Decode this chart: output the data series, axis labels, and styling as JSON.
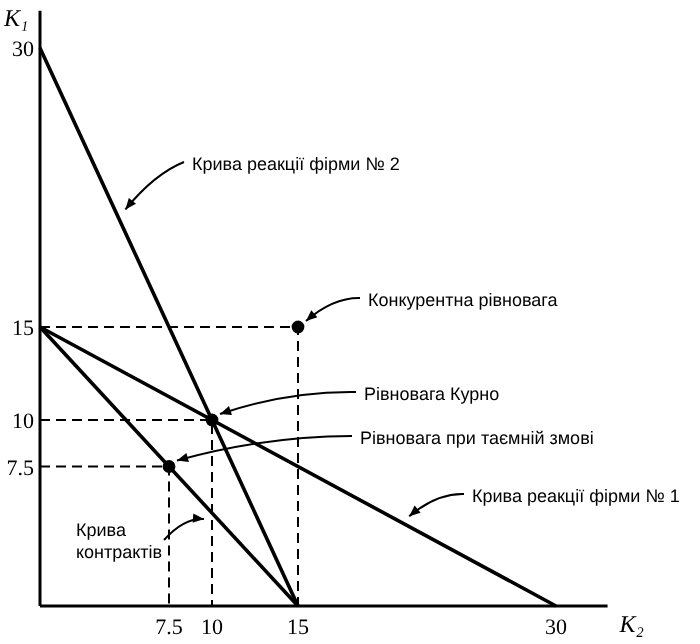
{
  "chart_data": {
    "type": "line",
    "xlabel": "K₂",
    "ylabel": "K₁",
    "xlim": [
      0,
      33
    ],
    "ylim": [
      0,
      32
    ],
    "xticks": [
      7.5,
      10,
      15,
      30
    ],
    "yticks": [
      7.5,
      10,
      15,
      30
    ],
    "grid": false,
    "series": [
      {
        "color": "#000000",
        "x": [
          0,
          15
        ],
        "values": [
          30,
          0
        ]
      },
      {
        "color": "#000000",
        "x": [
          0,
          30
        ],
        "values": [
          15,
          0
        ]
      },
      {
        "color": "#000000",
        "x": [
          0,
          15
        ],
        "values": [
          15,
          0
        ]
      },
      {
        "color": "#000000",
        "x": [
          0,
          15,
          15
        ],
        "values": [
          15,
          15,
          0
        ],
        "line_style": "dashed"
      },
      {
        "color": "#000000",
        "x": [
          0,
          10,
          10
        ],
        "values": [
          10,
          10,
          0
        ],
        "line_style": "dashed"
      },
      {
        "color": "#000000",
        "x": [
          0,
          7.5,
          7.5
        ],
        "values": [
          7.5,
          7.5,
          0
        ],
        "line_style": "dashed"
      },
      {
        "type": "scatter",
        "color": "#000000",
        "x": [
          15,
          10,
          7.5
        ],
        "values": [
          15,
          10,
          7.5
        ],
        "marker": "circle"
      }
    ],
    "annotations": [
      {
        "text": "Крива реакції фірми № 2",
        "x": 4.5,
        "y": 21
      },
      {
        "text": "Конкурентна рівновага",
        "x": 15,
        "y": 15
      },
      {
        "text": "Рівновага Курно",
        "x": 10,
        "y": 10
      },
      {
        "text": "Рівновага при таємній змові",
        "x": 7.5,
        "y": 7.5
      },
      {
        "text": "Крива реакції фірми № 1",
        "x": 21,
        "y": 4.5
      },
      {
        "text": "Крива контрактів",
        "x": 10,
        "y": 5
      }
    ]
  }
}
